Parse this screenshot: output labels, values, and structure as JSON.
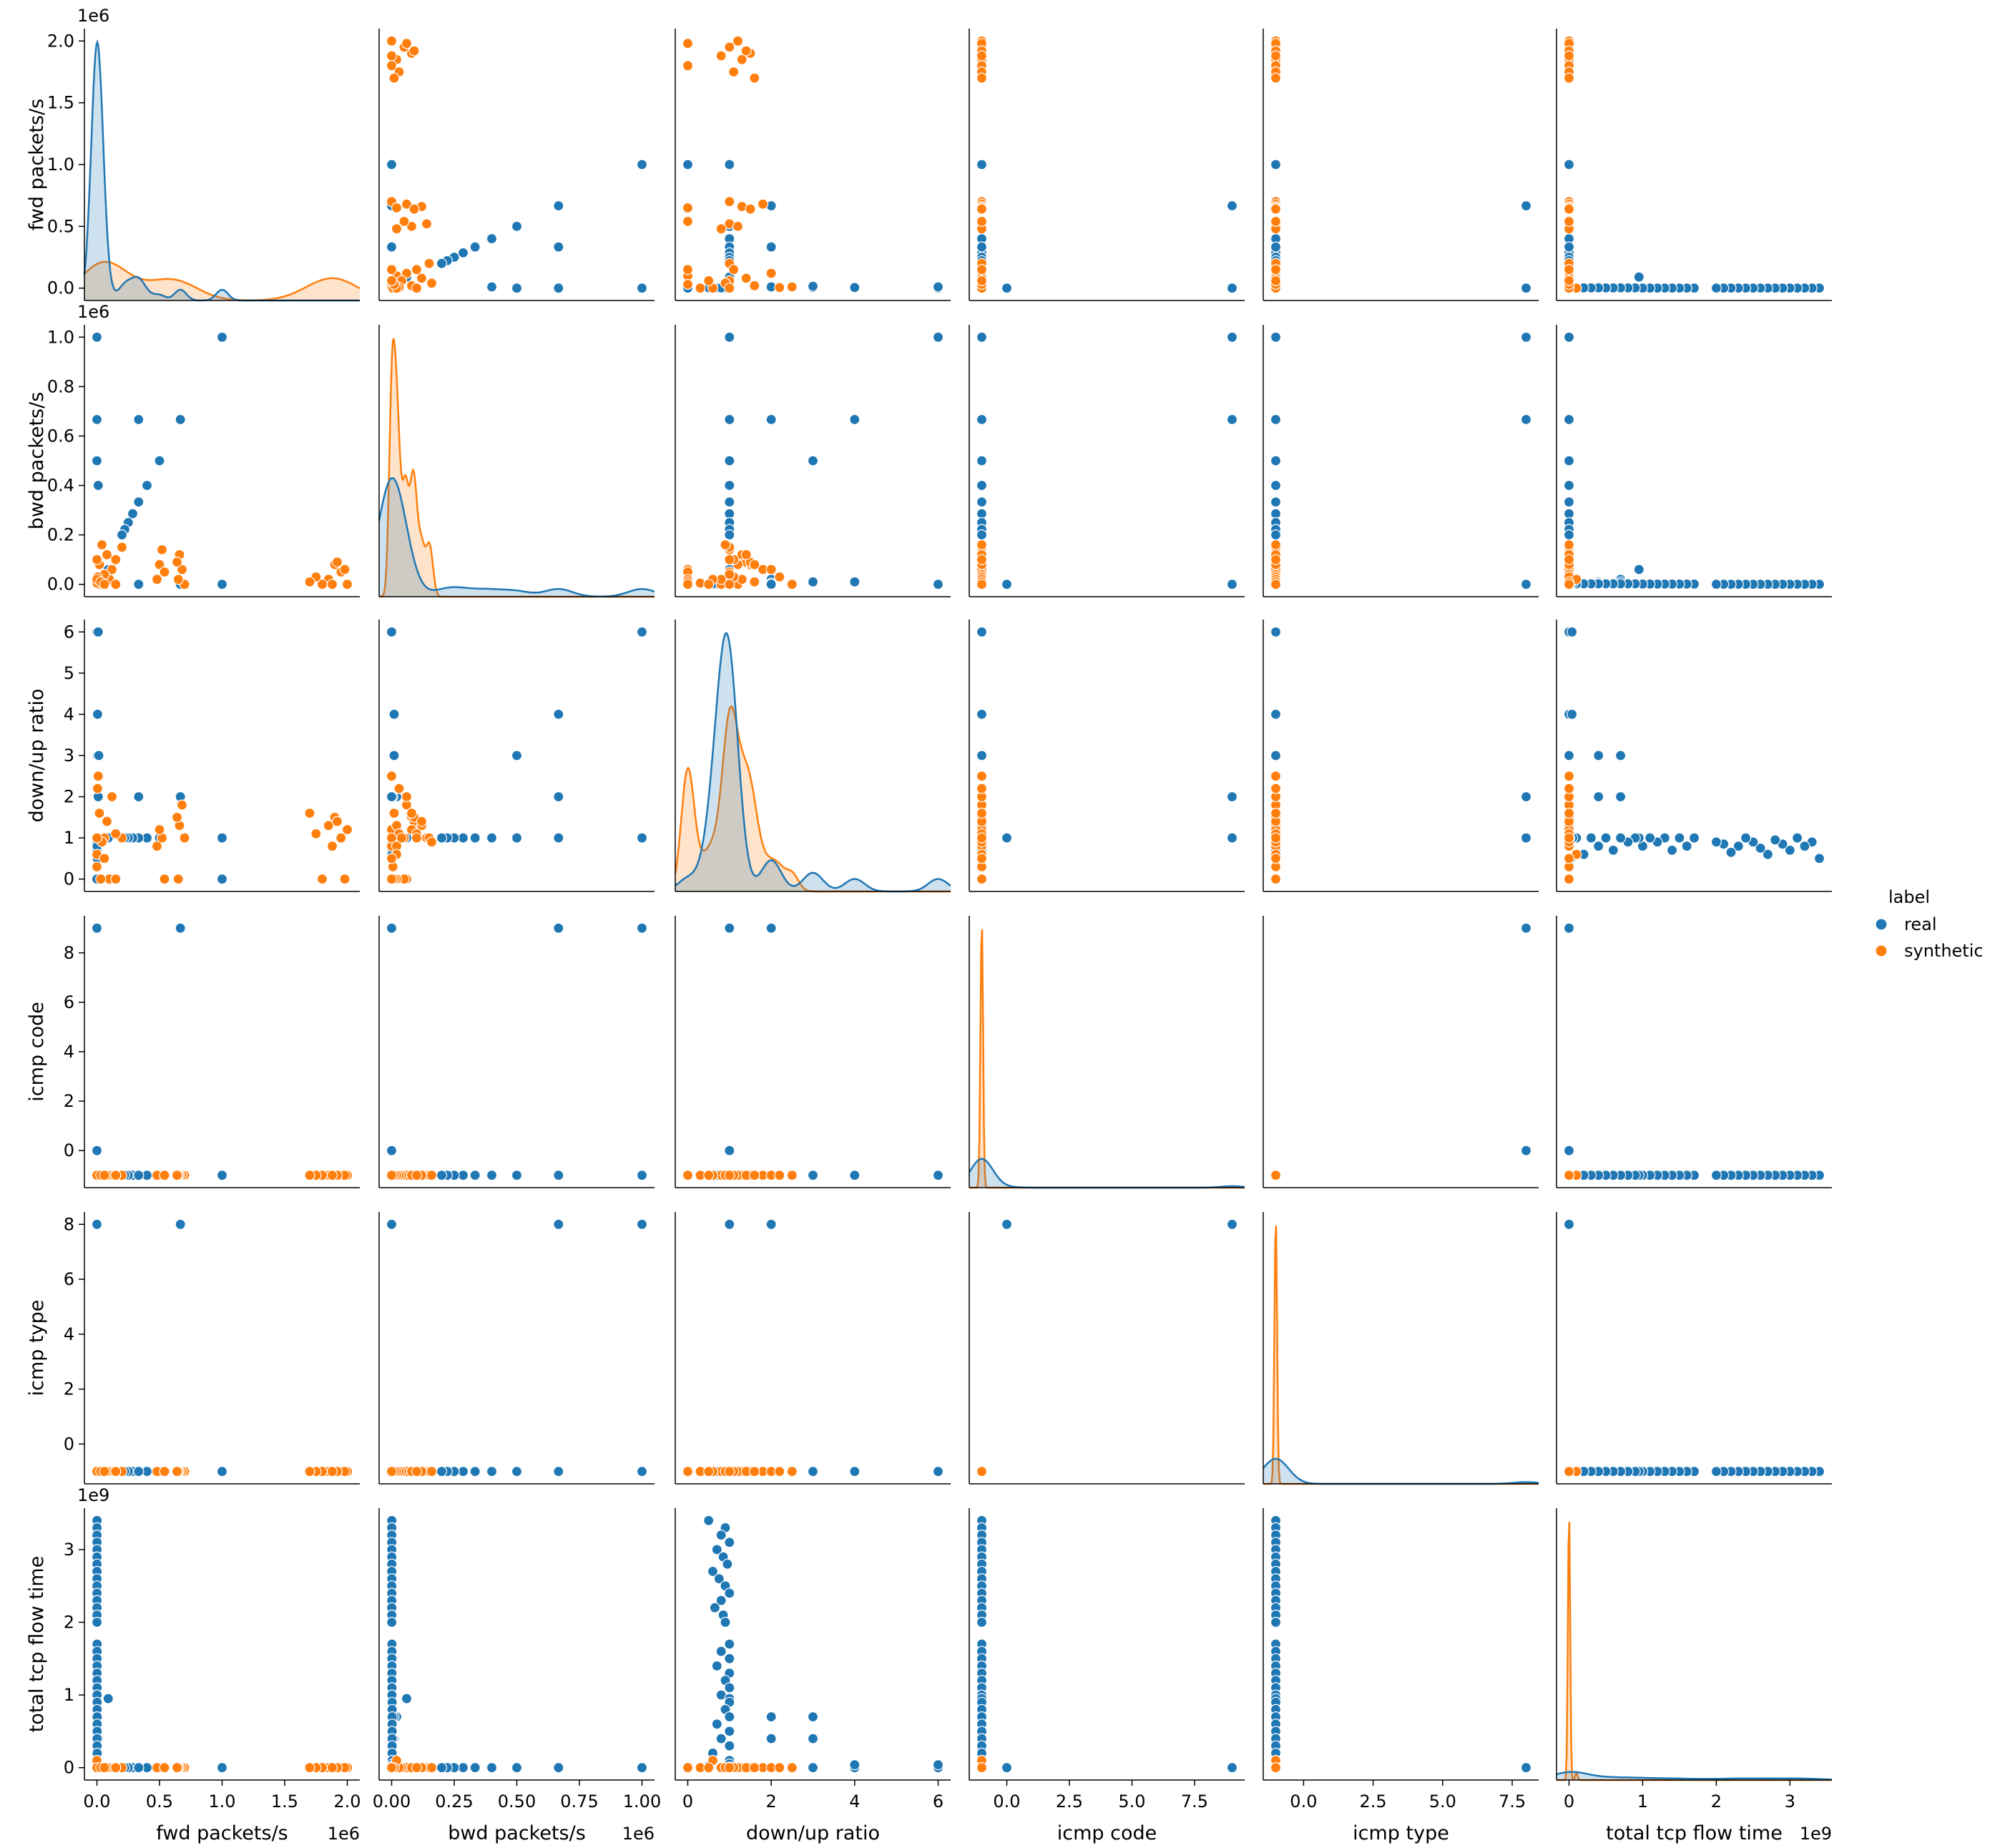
{
  "chart_data": {
    "type": "scatter",
    "variables": [
      "fwd packets/s",
      "bwd packets/s",
      "down/up ratio",
      "icmp code",
      "icmp type",
      "total tcp flow time"
    ],
    "axes": [
      {
        "name": "fwd packets/s",
        "range": [
          -100000,
          2100000
        ],
        "ticks": [
          0,
          500000,
          1000000,
          1500000,
          2000000
        ],
        "tick_labels": [
          "0.0",
          "0.5",
          "1.0",
          "1.5",
          "2.0"
        ],
        "offset": "1e6",
        "x_ticks": [
          0,
          500000,
          1000000,
          1500000,
          2000000
        ],
        "x_tick_labels": [
          "0.0",
          "0.5",
          "1.0",
          "1.5",
          "2.0"
        ],
        "x_offset": "1e6"
      },
      {
        "name": "bwd packets/s",
        "range": [
          -50000,
          1050000
        ],
        "ticks": [
          0,
          200000,
          400000,
          600000,
          800000,
          1000000
        ],
        "tick_labels": [
          "0.0",
          "0.2",
          "0.4",
          "0.6",
          "0.8",
          "1.0"
        ],
        "offset": "1e6",
        "x_ticks": [
          0,
          250000,
          500000,
          750000,
          1000000
        ],
        "x_tick_labels": [
          "0.00",
          "0.25",
          "0.50",
          "0.75",
          "1.00"
        ],
        "x_offset": "1e6"
      },
      {
        "name": "down/up ratio",
        "range": [
          -0.3,
          6.3
        ],
        "ticks": [
          0,
          1,
          2,
          3,
          4,
          5,
          6
        ],
        "tick_labels": [
          "0",
          "1",
          "2",
          "3",
          "4",
          "5",
          "6"
        ],
        "offset": "",
        "x_ticks": [
          0,
          2,
          4,
          6
        ],
        "x_tick_labels": [
          "0",
          "2",
          "4",
          "6"
        ],
        "x_offset": ""
      },
      {
        "name": "icmp code",
        "range": [
          -1.5,
          9.5
        ],
        "ticks": [
          0,
          2,
          4,
          6,
          8
        ],
        "tick_labels": [
          "0",
          "2",
          "4",
          "6",
          "8"
        ],
        "offset": "",
        "x_ticks": [
          0,
          2.5,
          5,
          7.5
        ],
        "x_tick_labels": [
          "0.0",
          "2.5",
          "5.0",
          "7.5"
        ],
        "x_offset": ""
      },
      {
        "name": "icmp type",
        "range": [
          -1.45,
          8.45
        ],
        "ticks": [
          0,
          2,
          4,
          6,
          8
        ],
        "tick_labels": [
          "0",
          "2",
          "4",
          "6",
          "8"
        ],
        "offset": "",
        "x_ticks": [
          0,
          2.5,
          5,
          7.5
        ],
        "x_tick_labels": [
          "0.0",
          "2.5",
          "5.0",
          "7.5"
        ],
        "x_offset": ""
      },
      {
        "name": "total tcp flow time",
        "range": [
          -170000000,
          3570000000
        ],
        "ticks": [
          0,
          1000000000,
          2000000000,
          3000000000
        ],
        "tick_labels": [
          "0",
          "1",
          "2",
          "3"
        ],
        "offset": "1e9",
        "x_ticks": [
          0,
          1000000000,
          2000000000,
          3000000000
        ],
        "x_tick_labels": [
          "0",
          "1",
          "2",
          "3"
        ],
        "x_offset": "1e9"
      }
    ],
    "legend": {
      "title": "label",
      "placement": "right",
      "entries": [
        {
          "name": "real",
          "color": "#1f77b4"
        },
        {
          "name": "synthetic",
          "color": "#ff7f0e"
        }
      ]
    },
    "series": [
      {
        "name": "real",
        "color": "#1f77b4",
        "points": [
          [
            0,
            1000000,
            1,
            9,
            8,
            0
          ],
          [
            0,
            1000000,
            6,
            -1,
            -1,
            0
          ],
          [
            0,
            666667,
            4,
            -1,
            -1,
            0
          ],
          [
            0,
            500000,
            3,
            -1,
            -1,
            0
          ],
          [
            10000,
            400000,
            1,
            -1,
            -1,
            0
          ],
          [
            0,
            0,
            1,
            0,
            8,
            0
          ],
          [
            0,
            0,
            0,
            -1,
            -1,
            0
          ],
          [
            1000000,
            1000000,
            1,
            -1,
            -1,
            0
          ],
          [
            1000000,
            0,
            0,
            -1,
            -1,
            0
          ],
          [
            666667,
            666667,
            2,
            9,
            8,
            0
          ],
          [
            333333,
            666667,
            1,
            -1,
            -1,
            0
          ],
          [
            500000,
            500000,
            1,
            -1,
            -1,
            0
          ],
          [
            400000,
            400000,
            1,
            -1,
            -1,
            0
          ],
          [
            333333,
            333333,
            1,
            -1,
            -1,
            0
          ],
          [
            285714,
            285714,
            1,
            -1,
            -1,
            0
          ],
          [
            250000,
            250000,
            1,
            -1,
            -1,
            0
          ],
          [
            222222,
            222222,
            1,
            -1,
            -1,
            0
          ],
          [
            200000,
            200000,
            1,
            -1,
            -1,
            0
          ],
          [
            333333,
            0,
            2,
            -1,
            -1,
            0
          ],
          [
            5000,
            10000,
            4,
            -1,
            -1,
            40000000
          ],
          [
            10000,
            0,
            6,
            -1,
            -1,
            40000000
          ],
          [
            10000,
            20000,
            2,
            -1,
            -1,
            700000000
          ],
          [
            5000,
            10000,
            3,
            -1,
            -1,
            700000000
          ],
          [
            15000,
            10000,
            3,
            -1,
            -1,
            400000000
          ],
          [
            10000,
            5000,
            2,
            -1,
            -1,
            400000000
          ],
          [
            500,
            500,
            0.5,
            -1,
            -1,
            3400000000
          ],
          [
            500,
            500,
            0.9,
            -1,
            -1,
            3300000000
          ],
          [
            500,
            500,
            0.8,
            -1,
            -1,
            3200000000
          ],
          [
            500,
            500,
            1.0,
            -1,
            -1,
            3100000000
          ],
          [
            500,
            500,
            0.7,
            -1,
            -1,
            3000000000
          ],
          [
            500,
            500,
            0.85,
            -1,
            -1,
            2900000000
          ],
          [
            500,
            500,
            0.95,
            -1,
            -1,
            2800000000
          ],
          [
            500,
            500,
            0.6,
            -1,
            -1,
            2700000000
          ],
          [
            500,
            500,
            0.75,
            -1,
            -1,
            2600000000
          ],
          [
            500,
            500,
            0.9,
            -1,
            -1,
            2500000000
          ],
          [
            500,
            500,
            1.0,
            -1,
            -1,
            2400000000
          ],
          [
            500,
            500,
            0.8,
            -1,
            -1,
            2300000000
          ],
          [
            500,
            500,
            0.65,
            -1,
            -1,
            2200000000
          ],
          [
            500,
            500,
            0.85,
            -1,
            -1,
            2100000000
          ],
          [
            500,
            500,
            0.9,
            -1,
            -1,
            2000000000
          ],
          [
            1000,
            1000,
            1.0,
            -1,
            -1,
            1700000000
          ],
          [
            1000,
            1000,
            0.8,
            -1,
            -1,
            1600000000
          ],
          [
            1000,
            1000,
            1.0,
            -1,
            -1,
            1500000000
          ],
          [
            1000,
            1000,
            0.7,
            -1,
            -1,
            1400000000
          ],
          [
            1000,
            1000,
            1.0,
            -1,
            -1,
            1300000000
          ],
          [
            1000,
            1000,
            0.9,
            -1,
            -1,
            1200000000
          ],
          [
            1000,
            1000,
            1.0,
            -1,
            -1,
            1100000000
          ],
          [
            1000,
            1000,
            0.8,
            -1,
            -1,
            1000000000
          ],
          [
            90000,
            60000,
            1.0,
            -1,
            -1,
            950000000
          ],
          [
            2000,
            2000,
            1.0,
            -1,
            -1,
            900000000
          ],
          [
            2000,
            2000,
            0.9,
            -1,
            -1,
            800000000
          ],
          [
            2000,
            2000,
            1.0,
            -1,
            -1,
            700000000
          ],
          [
            2000,
            2000,
            0.7,
            -1,
            -1,
            600000000
          ],
          [
            2000,
            2000,
            1.0,
            -1,
            -1,
            500000000
          ],
          [
            2000,
            2000,
            0.8,
            -1,
            -1,
            400000000
          ],
          [
            2000,
            2000,
            1.0,
            -1,
            -1,
            300000000
          ],
          [
            2000,
            2000,
            0.6,
            -1,
            -1,
            200000000
          ],
          [
            2000,
            2000,
            1.0,
            -1,
            -1,
            100000000
          ],
          [
            3000,
            3000,
            1.0,
            -1,
            -1,
            50000000
          ],
          [
            3000,
            3000,
            0.5,
            -1,
            -1,
            20000000
          ],
          [
            4000,
            3000,
            1.0,
            -1,
            -1,
            10000000
          ],
          [
            666667,
            0,
            2,
            9,
            8,
            0
          ]
        ]
      },
      {
        "name": "synthetic",
        "color": "#ff7f0e",
        "points": [
          [
            2000000,
            0,
            1.2,
            -1,
            -1,
            0
          ],
          [
            1950000,
            50000,
            1.0,
            -1,
            -1,
            0
          ],
          [
            1900000,
            80000,
            1.5,
            -1,
            -1,
            0
          ],
          [
            1850000,
            20000,
            1.3,
            -1,
            -1,
            0
          ],
          [
            1800000,
            0,
            0,
            -1,
            -1,
            0
          ],
          [
            1750000,
            30000,
            1.1,
            -1,
            -1,
            0
          ],
          [
            1700000,
            10000,
            1.6,
            -1,
            -1,
            0
          ],
          [
            1980000,
            60000,
            0,
            -1,
            -1,
            0
          ],
          [
            1920000,
            90000,
            1.4,
            -1,
            -1,
            0
          ],
          [
            1880000,
            0,
            0.8,
            -1,
            -1,
            0
          ],
          [
            700000,
            0,
            1.0,
            -1,
            -1,
            0
          ],
          [
            680000,
            60000,
            1.8,
            -1,
            -1,
            0
          ],
          [
            660000,
            120000,
            1.3,
            -1,
            -1,
            0
          ],
          [
            650000,
            20000,
            0,
            -1,
            -1,
            0
          ],
          [
            640000,
            90000,
            1.5,
            -1,
            -1,
            0
          ],
          [
            520000,
            140000,
            1.0,
            -1,
            -1,
            0
          ],
          [
            500000,
            80000,
            1.2,
            -1,
            -1,
            0
          ],
          [
            480000,
            20000,
            0.8,
            -1,
            -1,
            0
          ],
          [
            540000,
            50000,
            0,
            -1,
            -1,
            0
          ],
          [
            200000,
            150000,
            1.0,
            -1,
            -1,
            0
          ],
          [
            150000,
            100000,
            1.1,
            -1,
            -1,
            0
          ],
          [
            120000,
            60000,
            2.0,
            -1,
            -1,
            0
          ],
          [
            100000,
            20000,
            0,
            -1,
            -1,
            0
          ],
          [
            80000,
            120000,
            1.4,
            -1,
            -1,
            0
          ],
          [
            60000,
            40000,
            1.0,
            -1,
            -1,
            0
          ],
          [
            40000,
            160000,
            0.9,
            -1,
            -1,
            0
          ],
          [
            20000,
            80000,
            1.6,
            -1,
            -1,
            0
          ],
          [
            10000,
            0,
            2.5,
            -1,
            -1,
            0
          ],
          [
            5000,
            30000,
            2.2,
            -1,
            -1,
            0
          ],
          [
            0,
            5000,
            0.3,
            -1,
            -1,
            0
          ],
          [
            0,
            20000,
            0.6,
            -1,
            -1,
            100000000
          ],
          [
            0,
            100000,
            1.0,
            -1,
            -1,
            0
          ],
          [
            30000,
            10000,
            0,
            -1,
            -1,
            0
          ],
          [
            150000,
            0,
            0,
            -1,
            -1,
            0
          ],
          [
            60000,
            0,
            0.5,
            -1,
            -1,
            0
          ]
        ]
      }
    ]
  }
}
